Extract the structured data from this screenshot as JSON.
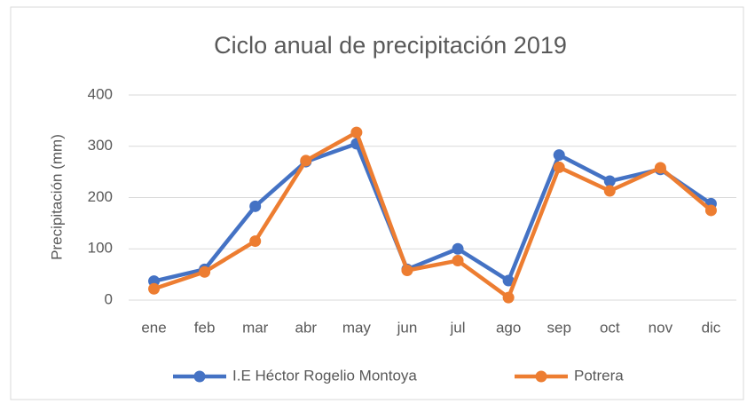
{
  "chart_data": {
    "type": "line",
    "title": "Ciclo anual de precipitación 2019",
    "y_label": "Precipitación (mm)",
    "categories": [
      "ene",
      "feb",
      "mar",
      "abr",
      "may",
      "jun",
      "jul",
      "ago",
      "sep",
      "oct",
      "nov",
      "dic"
    ],
    "series": [
      {
        "name": "I.E Héctor Rogelio Montoya",
        "color": "#4472c4",
        "values": [
          37,
          60,
          183,
          270,
          305,
          60,
          100,
          38,
          283,
          232,
          255,
          188
        ]
      },
      {
        "name": "Potrera",
        "color": "#ed7d31",
        "values": [
          22,
          55,
          115,
          272,
          327,
          58,
          77,
          5,
          259,
          213,
          258,
          175
        ]
      }
    ],
    "ylim": [
      0,
      400
    ],
    "yticks": [
      0,
      100,
      200,
      300,
      400
    ],
    "grid": true,
    "legend": "bottom"
  }
}
